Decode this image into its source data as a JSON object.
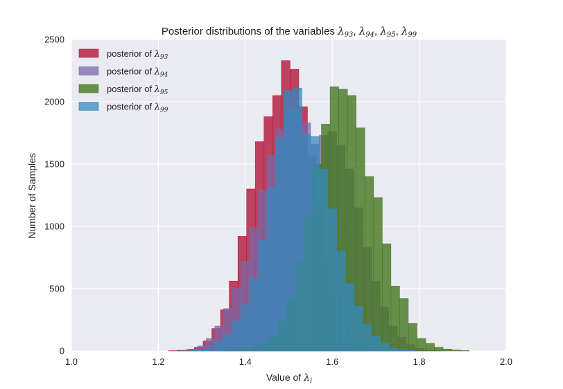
{
  "chart_data": {
    "type": "histogram",
    "title": "Posterior distributions of the variables λ93, λ94, λ95, λ99",
    "title_parts": {
      "prefix": "Posterior distributions of the variables",
      "symbols": [
        {
          "base": "λ",
          "sub": "93"
        },
        {
          "base": "λ",
          "sub": "94"
        },
        {
          "base": "λ",
          "sub": "95"
        },
        {
          "base": "λ",
          "sub": "99"
        }
      ]
    },
    "xlabel": "Value of λi",
    "xlabel_parts": {
      "prefix": "Value of",
      "base": "λ",
      "sub": "i"
    },
    "ylabel": "Number of Samples",
    "xlim": [
      1.0,
      2.0
    ],
    "ylim": [
      0,
      2500
    ],
    "xticks": [
      "1.0",
      "1.2",
      "1.4",
      "1.6",
      "1.8",
      "2.0"
    ],
    "yticks": [
      "0",
      "500",
      "1000",
      "1500",
      "2000",
      "2500"
    ],
    "grid": true,
    "background": "#eaeaf2",
    "legend_position": "top-left",
    "series": [
      {
        "name": "posterior of λ93",
        "label_prefix": "posterior of",
        "sub": "93",
        "color": "#b2183a",
        "opacity": 0.8,
        "bin_start": 1.223,
        "bin_width": 0.02,
        "counts": [
          2,
          5,
          10,
          30,
          80,
          180,
          330,
          560,
          920,
          1300,
          1680,
          1880,
          2050,
          2330,
          2260,
          1960,
          1560,
          1160,
          740,
          420,
          220,
          110,
          45,
          15,
          5
        ]
      },
      {
        "name": "posterior of λ94",
        "label_prefix": "posterior of",
        "sub": "94",
        "color": "#7a68a6",
        "opacity": 0.75,
        "bin_start": 1.25,
        "bin_width": 0.02,
        "counts": [
          5,
          15,
          40,
          100,
          200,
          340,
          500,
          720,
          990,
          1290,
          1570,
          1780,
          1950,
          1960,
          1830,
          1660,
          1730,
          1760,
          1650,
          1460,
          1150,
          830,
          560,
          350,
          200,
          110,
          50,
          20,
          8,
          3
        ]
      },
      {
        "name": "posterior of λ95",
        "label_prefix": "posterior of",
        "sub": "95",
        "color": "#467821",
        "opacity": 0.8,
        "bin_start": 1.355,
        "bin_width": 0.02,
        "counts": [
          5,
          10,
          20,
          40,
          70,
          120,
          240,
          420,
          720,
          1080,
          1500,
          1820,
          2120,
          2100,
          2050,
          1790,
          1400,
          1230,
          860,
          520,
          420,
          220,
          100,
          60,
          30,
          15,
          8,
          3
        ]
      },
      {
        "name": "posterior of λ99",
        "label_prefix": "posterior of",
        "sub": "99",
        "color": "#348abd",
        "opacity": 0.75,
        "bin_start": 1.27,
        "bin_width": 0.02,
        "counts": [
          3,
          10,
          30,
          75,
          130,
          240,
          370,
          580,
          890,
          1310,
          1710,
          2090,
          2110,
          1740,
          1720,
          1460,
          1140,
          800,
          540,
          360,
          210,
          120,
          60,
          25,
          10,
          4
        ]
      }
    ]
  }
}
